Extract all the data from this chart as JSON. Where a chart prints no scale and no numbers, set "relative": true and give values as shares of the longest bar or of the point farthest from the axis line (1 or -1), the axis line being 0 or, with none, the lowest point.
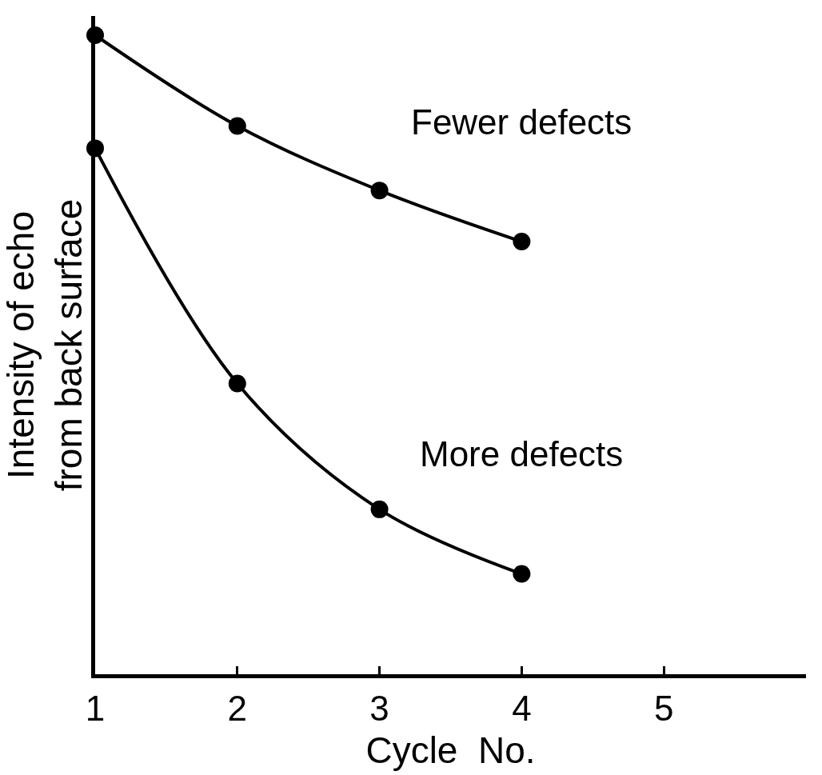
{
  "chart_data": {
    "type": "line",
    "relative": true,
    "xlabel": "Cycle  No.",
    "ylabel": "Intensity of echo\nfrom back surface",
    "x": [
      1,
      2,
      3,
      4
    ],
    "xlim": [
      1,
      6
    ],
    "xticks": [
      1,
      2,
      3,
      4,
      5
    ],
    "series": [
      {
        "name": "Fewer defects",
        "color": "#000000",
        "values": [
          1.0,
          0.858,
          0.757,
          0.677
        ]
      },
      {
        "name": "More defects",
        "color": "#000000",
        "values": [
          0.823,
          0.455,
          0.258,
          0.157
        ]
      }
    ],
    "marker": "circle",
    "line_style": "solid",
    "legend": false,
    "tick_labels": "x"
  }
}
